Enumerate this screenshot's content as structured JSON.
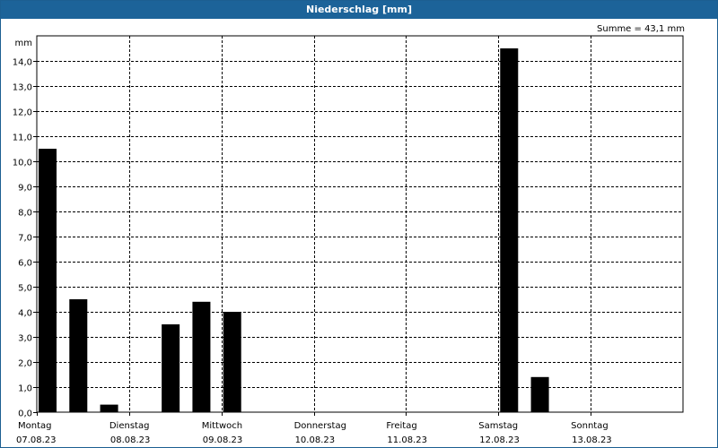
{
  "header": {
    "title": "Niederschlag [mm]"
  },
  "summary": {
    "total": "Summe = 43,1 mm"
  },
  "colors": {
    "bar": "#000000",
    "title_bg": "#1c6399",
    "grid": "#000000"
  },
  "chart_data": {
    "type": "bar",
    "title": "Niederschlag [mm]",
    "ylabel": "mm",
    "ylim": [
      0,
      15
    ],
    "yticks": [
      "0,0",
      "1,0",
      "2,0",
      "3,0",
      "4,0",
      "5,0",
      "6,0",
      "7,0",
      "8,0",
      "9,0",
      "10,0",
      "11,0",
      "12,0",
      "13,0",
      "14,0"
    ],
    "days": [
      {
        "weekday": "Montag",
        "date": "07.08.23"
      },
      {
        "weekday": "Dienstag",
        "date": "08.08.23"
      },
      {
        "weekday": "Mittwoch",
        "date": "09.08.23"
      },
      {
        "weekday": "Donnerstag",
        "date": "10.08.23"
      },
      {
        "weekday": "Freitag",
        "date": "11.08.23"
      },
      {
        "weekday": "Samstag",
        "date": "12.08.23"
      },
      {
        "weekday": "Sonntag",
        "date": "13.08.23"
      }
    ],
    "slots_per_day": 3,
    "values": [
      10.5,
      4.5,
      0.3,
      0,
      3.5,
      4.4,
      4.0,
      0,
      0,
      0,
      0,
      0,
      0,
      0,
      0,
      14.5,
      1.4,
      0,
      0,
      0,
      0
    ],
    "total": "Summe = 43,1 mm"
  }
}
